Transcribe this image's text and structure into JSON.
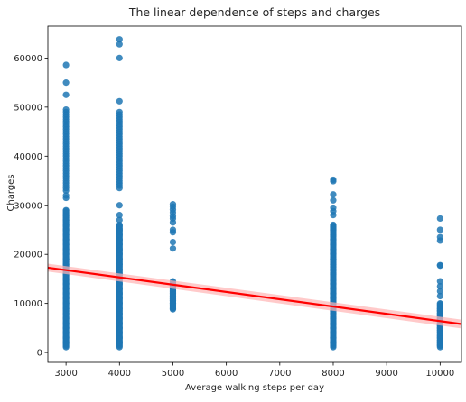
{
  "chart_data": {
    "type": "scatter",
    "title": "The linear dependence of steps and charges",
    "xlabel": "Average walking steps per day",
    "ylabel": "Charges",
    "xlim": [
      2660,
      10400
    ],
    "ylim": [
      -2000,
      66500
    ],
    "xticks": [
      3000,
      4000,
      5000,
      6000,
      7000,
      8000,
      9000,
      10000
    ],
    "yticks": [
      0,
      10000,
      20000,
      30000,
      40000,
      50000,
      60000
    ],
    "grid": false,
    "point_color": "#1f77b4",
    "series": [
      {
        "x": 3000,
        "min": 1100,
        "dense_max": 29000,
        "values": [
          58600,
          55000,
          52500,
          49500,
          49000,
          48500,
          48000,
          47500,
          47000,
          46500,
          46000,
          45500,
          45000,
          44500,
          44000,
          43500,
          43000,
          42500,
          42000,
          41500,
          41000,
          40500,
          40000,
          39500,
          39000,
          38500,
          38000,
          37500,
          37000,
          36500,
          36000,
          35500,
          35000,
          34500,
          34000,
          33500,
          33000,
          32000,
          31500,
          29000,
          28000,
          27000,
          26000,
          25000,
          24000,
          23000,
          22000,
          21000,
          20000,
          19000,
          18000,
          17000,
          16000,
          15000,
          14000,
          13000,
          12000,
          11000,
          10000,
          9000,
          8000,
          7000,
          6000,
          5000,
          4000,
          3000,
          2000,
          1100
        ]
      },
      {
        "x": 4000,
        "min": 1100,
        "dense_max": 26000,
        "values": [
          63800,
          62800,
          60000,
          51200,
          49000,
          48500,
          48000,
          47500,
          47000,
          46500,
          46000,
          45500,
          45000,
          44500,
          44000,
          43500,
          43000,
          42500,
          42000,
          41500,
          41000,
          40500,
          40000,
          39500,
          39000,
          38500,
          38000,
          37500,
          37000,
          36500,
          36000,
          35500,
          35000,
          34500,
          34000,
          33500,
          30000,
          28000,
          27000,
          26000,
          25000,
          24000,
          23000,
          22000,
          21000,
          20000,
          19000,
          18000,
          17000,
          16000,
          15000,
          14000,
          13000,
          12000,
          11000,
          10000,
          9000,
          8000,
          7000,
          6000,
          5000,
          4000,
          3000,
          2000,
          1100
        ]
      },
      {
        "x": 5000,
        "min": 8800,
        "dense_max": 14500,
        "values": [
          30200,
          29700,
          29100,
          28500,
          27800,
          27300,
          26500,
          25000,
          24500,
          22500,
          21200,
          14500,
          14000,
          13500,
          13000,
          12500,
          12000,
          11500,
          11000,
          10500,
          10000,
          9500,
          9000,
          8800
        ]
      },
      {
        "x": 8000,
        "min": 1100,
        "dense_max": 26000,
        "values": [
          35200,
          34900,
          32200,
          31000,
          29500,
          28800,
          28000,
          26000,
          25500,
          25000,
          24000,
          23000,
          22000,
          21000,
          20000,
          19000,
          18000,
          17000,
          16000,
          15000,
          14000,
          13000,
          12000,
          11000,
          10000,
          9000,
          8000,
          7000,
          6000,
          5000,
          4000,
          3000,
          2000,
          1100
        ]
      },
      {
        "x": 10000,
        "min": 1100,
        "dense_max": 10000,
        "values": [
          27300,
          25000,
          23500,
          22800,
          17800,
          17700,
          14500,
          13500,
          12500,
          11500,
          10000,
          9500,
          9000,
          8500,
          8000,
          7500,
          7000,
          6500,
          6000,
          5500,
          5000,
          4500,
          4000,
          3500,
          3000,
          2500,
          2000,
          1500,
          1100
        ]
      }
    ],
    "regression": {
      "color": "#ff0000",
      "ci_color": "#ffb3b3",
      "x": [
        2660,
        10400
      ],
      "y": [
        17300,
        5800
      ],
      "ci_half_width": [
        800,
        900
      ]
    }
  }
}
